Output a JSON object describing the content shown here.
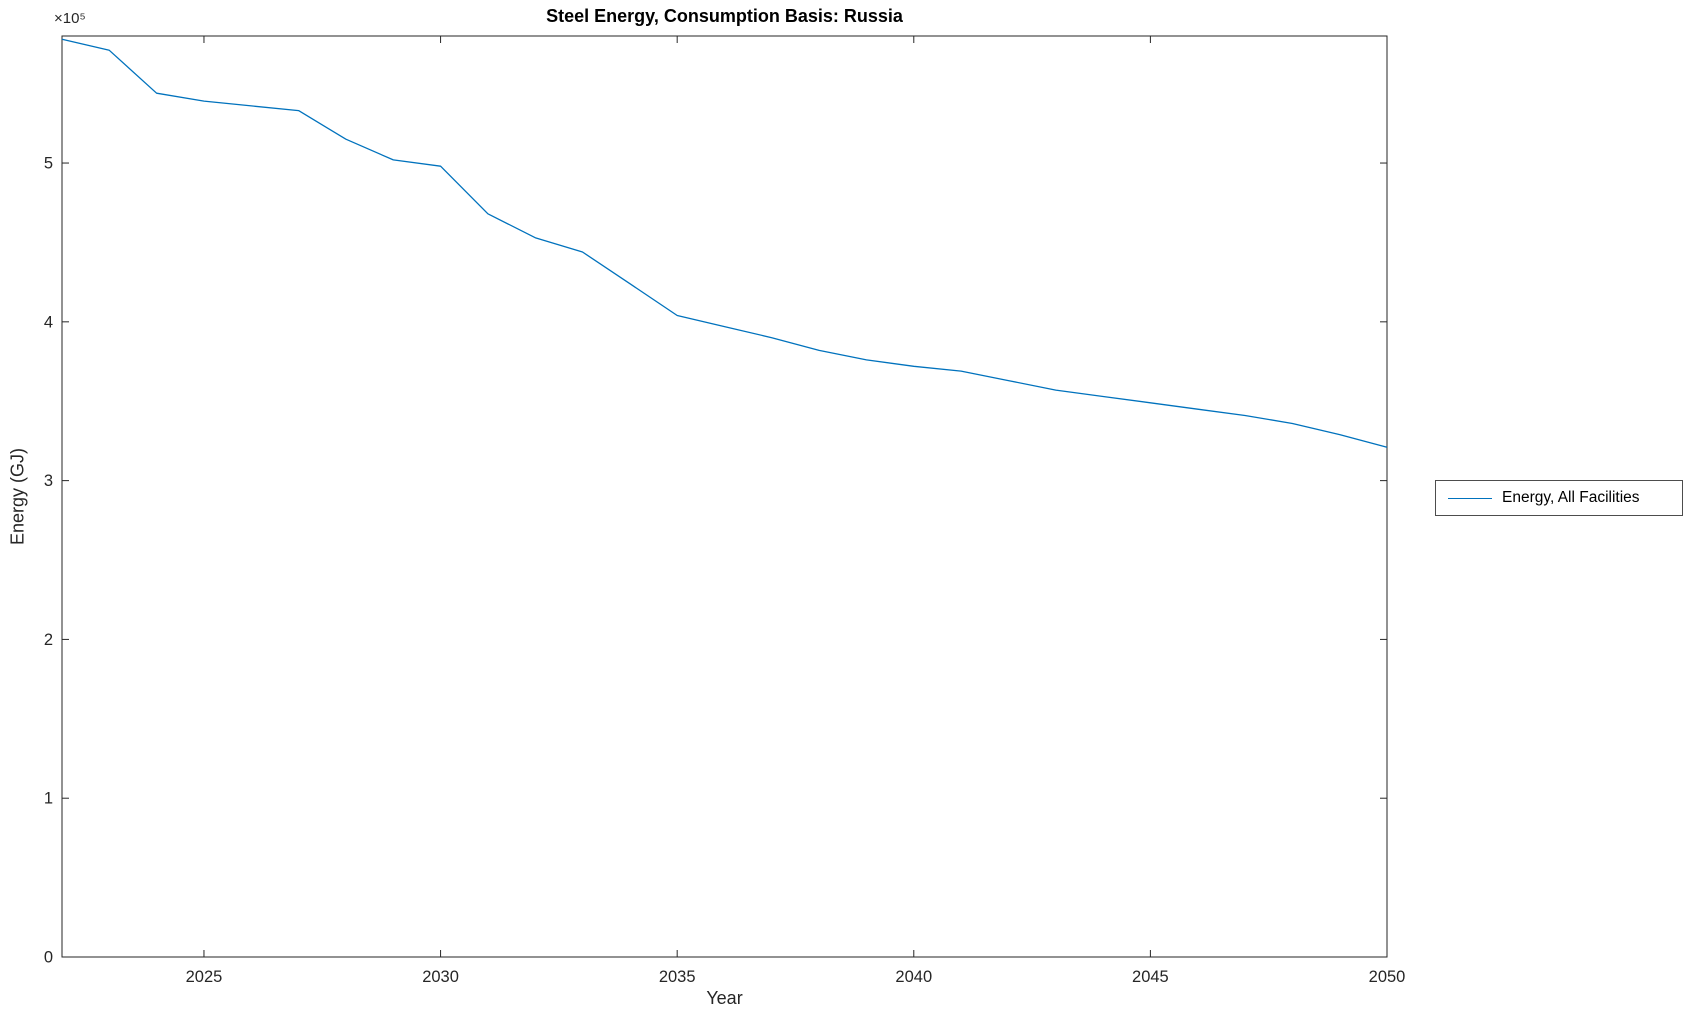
{
  "title": "Steel Energy, Consumption Basis: Russia",
  "xlabel": "Year",
  "ylabel": "Energy (GJ)",
  "y_exponent_label": "×10⁵",
  "legend": {
    "position": "outside-right",
    "entries": [
      {
        "label": "Energy, All Facilities",
        "color": "#0072BD"
      }
    ]
  },
  "chart_data": {
    "type": "line",
    "title": "Steel Energy, Consumption Basis: Russia",
    "xlabel": "Year",
    "ylabel": "Energy (GJ)",
    "y_unit_scale": "1e5",
    "xlim": [
      2022,
      2050
    ],
    "ylim": [
      0,
      580000
    ],
    "x_ticks": [
      2025,
      2030,
      2035,
      2040,
      2045,
      2050
    ],
    "y_ticks": [
      0,
      100000,
      200000,
      300000,
      400000,
      500000
    ],
    "y_tick_labels": [
      "0",
      "1",
      "2",
      "3",
      "4",
      "5"
    ],
    "grid": false,
    "box": true,
    "legend_position": "outside-right",
    "x": [
      2022,
      2023,
      2024,
      2025,
      2026,
      2027,
      2028,
      2029,
      2030,
      2031,
      2032,
      2033,
      2034,
      2035,
      2036,
      2037,
      2038,
      2039,
      2040,
      2041,
      2042,
      2043,
      2044,
      2045,
      2046,
      2047,
      2048,
      2049,
      2050
    ],
    "series": [
      {
        "name": "Energy, All Facilities",
        "color": "#0072BD",
        "values": [
          578000,
          571000,
          544000,
          539000,
          536000,
          533000,
          515000,
          502000,
          498000,
          468000,
          453000,
          444000,
          424000,
          404000,
          397000,
          390000,
          382000,
          376000,
          372000,
          369000,
          363000,
          357000,
          353000,
          349000,
          345000,
          341000,
          336000,
          329000,
          321000
        ]
      }
    ]
  }
}
